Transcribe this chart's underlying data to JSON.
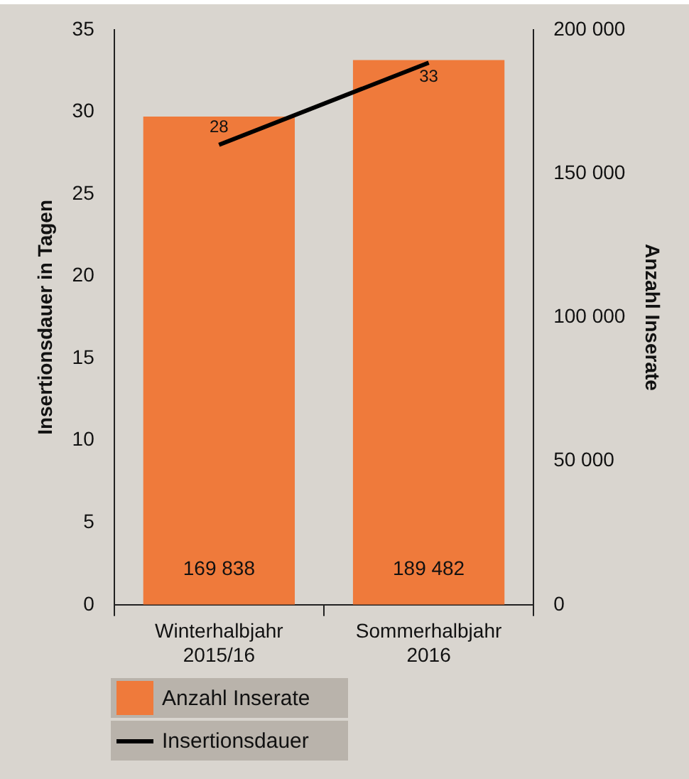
{
  "chart_data": {
    "type": "bar",
    "categories": [
      "Winterhalbjahr 2015/16",
      "Sommerhalbjahr 2016"
    ],
    "ylabel": "Insertionsdauer in Tagen",
    "y2label": "Anzahl Inserate",
    "series": [
      {
        "name": "Anzahl Inserate",
        "axis": "y2",
        "color": "#ef7a3b",
        "values": [
          169838,
          189482
        ],
        "value_labels": [
          "169 838",
          "189 482"
        ]
      },
      {
        "name": "Insertionsdauer",
        "type": "line",
        "axis": "y",
        "color": "#000000",
        "values": [
          28,
          33
        ],
        "value_labels": [
          "28",
          "33"
        ]
      }
    ],
    "ylim": [
      0,
      35
    ],
    "yticks": [
      0,
      5,
      10,
      15,
      20,
      25,
      30,
      35
    ],
    "y2lim": [
      0,
      200000
    ],
    "y2ticks": [
      0,
      {
        "value": 50000,
        "label": "50 000"
      },
      {
        "value": 100000,
        "label": "100 000"
      },
      {
        "value": 150000,
        "label": "150 000"
      },
      {
        "value": 200000,
        "label": "200 000"
      }
    ],
    "grid": false,
    "legend": "bottom",
    "marker": "none",
    "line_style": "solid"
  }
}
